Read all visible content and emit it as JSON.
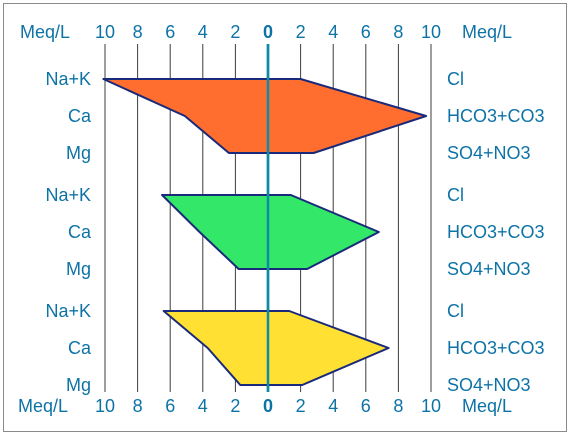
{
  "chart_data": {
    "type": "stiff",
    "title": "",
    "unit": "Meq/L",
    "x_ticks": [
      "10",
      "8",
      "6",
      "4",
      "2",
      "0",
      "2",
      "4",
      "6",
      "8",
      "10"
    ],
    "xlim": [
      -10,
      10
    ],
    "grid": true,
    "cation_labels": [
      "Na+K",
      "Ca",
      "Mg"
    ],
    "anion_labels": [
      "Cl",
      "HCO3+CO3",
      "SO4+NO3"
    ],
    "series": [
      {
        "color": "#ff6e2e",
        "cations": {
          "Na+K": 10.1,
          "Ca": 5.1,
          "Mg": 2.4
        },
        "anions": {
          "Cl": 2.0,
          "HCO3+CO3": 9.7,
          "SO4+NO3": 2.8
        }
      },
      {
        "color": "#33e868",
        "cations": {
          "Na+K": 6.5,
          "Ca": 4.2,
          "Mg": 1.8
        },
        "anions": {
          "Cl": 1.4,
          "HCO3+CO3": 6.8,
          "SO4+NO3": 2.4
        }
      },
      {
        "color": "#ffe033",
        "cations": {
          "Na+K": 6.4,
          "Ca": 3.7,
          "Mg": 1.7
        },
        "anions": {
          "Cl": 1.3,
          "HCO3+CO3": 7.4,
          "SO4+NO3": 2.1
        }
      }
    ]
  }
}
